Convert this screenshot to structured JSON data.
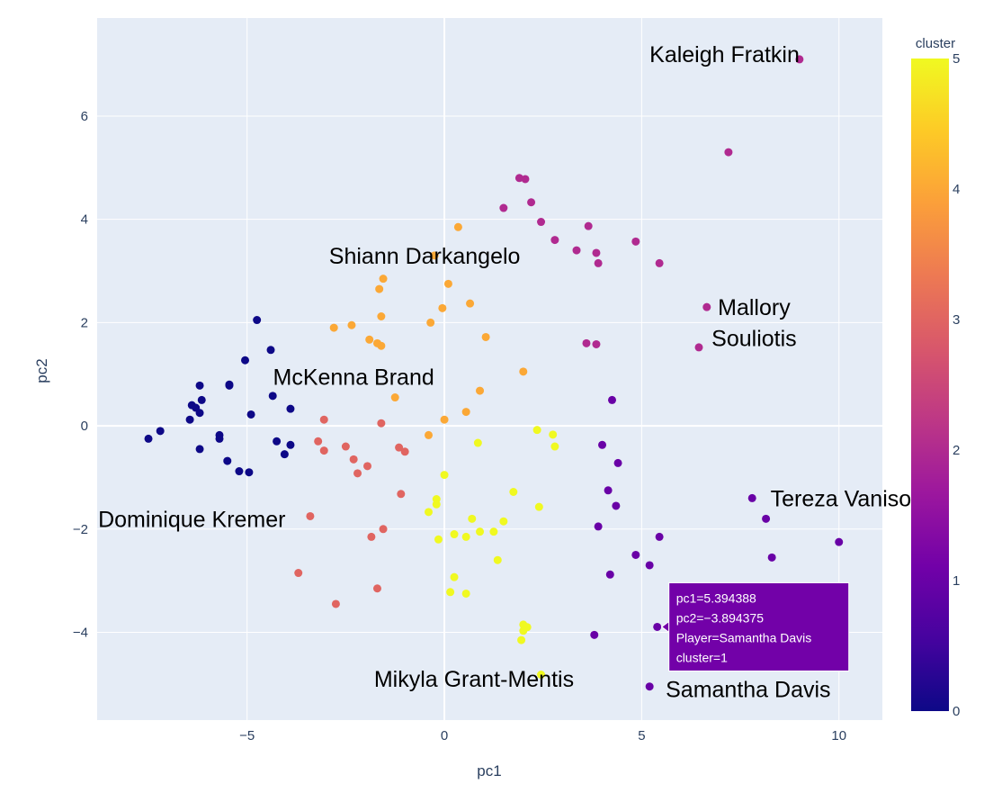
{
  "chart_data": {
    "type": "scatter",
    "xlabel": "pc1",
    "ylabel": "pc2",
    "xlim": [
      -8.8,
      11.1
    ],
    "ylim": [
      -5.7,
      7.9
    ],
    "x_ticks": [
      -5,
      0,
      5,
      10
    ],
    "y_ticks": [
      -4,
      -2,
      0,
      2,
      4,
      6
    ],
    "x_tick_labels": [
      "−5",
      "0",
      "5",
      "10"
    ],
    "y_tick_labels": [
      "−4",
      "−2",
      "0",
      "2",
      "4",
      "6"
    ],
    "grid": true,
    "plot_background": "#e5ecf6",
    "color_scale": [
      "#0d0887",
      "#46039f",
      "#7201a8",
      "#9c179e",
      "#bd3786",
      "#d8576b",
      "#ed7953",
      "#fb9f3a",
      "#fdca26",
      "#f0f921"
    ],
    "colorbar": {
      "title": "cluster",
      "min": 0,
      "max": 5,
      "ticks": [
        0,
        1,
        2,
        3,
        4,
        5
      ],
      "tick_labels": [
        "0",
        "1",
        "2",
        "3",
        "4",
        "5"
      ]
    },
    "points": [
      {
        "x": -7.5,
        "y": -0.25,
        "c": 0
      },
      {
        "x": -7.2,
        "y": -0.1,
        "c": 0
      },
      {
        "x": -6.4,
        "y": 0.4,
        "c": 0
      },
      {
        "x": -6.3,
        "y": 0.35,
        "c": 0
      },
      {
        "x": -6.2,
        "y": 0.25,
        "c": 0
      },
      {
        "x": -6.15,
        "y": 0.5,
        "c": 0
      },
      {
        "x": -6.2,
        "y": 0.78,
        "c": 0
      },
      {
        "x": -6.45,
        "y": 0.12,
        "c": 0
      },
      {
        "x": -6.2,
        "y": -0.45,
        "c": 0
      },
      {
        "x": -5.7,
        "y": -0.18,
        "c": 0
      },
      {
        "x": -5.7,
        "y": -0.25,
        "c": 0
      },
      {
        "x": -5.45,
        "y": 0.78,
        "c": 0
      },
      {
        "x": -5.45,
        "y": 0.8,
        "c": 0
      },
      {
        "x": -5.5,
        "y": -0.68,
        "c": 0
      },
      {
        "x": -5.2,
        "y": -0.88,
        "c": 0
      },
      {
        "x": -4.95,
        "y": -0.9,
        "c": 0
      },
      {
        "x": -5.05,
        "y": 1.27,
        "c": 0
      },
      {
        "x": -4.75,
        "y": 2.05,
        "c": 0
      },
      {
        "x": -4.9,
        "y": 0.22,
        "c": 0
      },
      {
        "x": -4.4,
        "y": 1.47,
        "c": 0
      },
      {
        "x": -4.35,
        "y": 0.58,
        "c": 0
      },
      {
        "x": -4.25,
        "y": -0.3,
        "c": 0
      },
      {
        "x": -4.05,
        "y": -0.55,
        "c": 0
      },
      {
        "x": -3.9,
        "y": -0.37,
        "c": 0
      },
      {
        "x": -3.9,
        "y": 0.33,
        "c": 0
      },
      {
        "x": 8.15,
        "y": -1.8,
        "c": 1
      },
      {
        "x": 7.8,
        "y": -1.4,
        "c": 1
      },
      {
        "x": 10.0,
        "y": -2.25,
        "c": 1
      },
      {
        "x": 8.3,
        "y": -2.55,
        "c": 1
      },
      {
        "x": 5.45,
        "y": -2.15,
        "c": 1
      },
      {
        "x": 5.2,
        "y": -2.7,
        "c": 1
      },
      {
        "x": 4.85,
        "y": -2.5,
        "c": 1
      },
      {
        "x": 4.2,
        "y": -2.88,
        "c": 1
      },
      {
        "x": 3.9,
        "y": -1.95,
        "c": 1
      },
      {
        "x": 4.15,
        "y": -1.25,
        "c": 1
      },
      {
        "x": 4.35,
        "y": -1.55,
        "c": 1
      },
      {
        "x": 4.0,
        "y": -0.37,
        "c": 1
      },
      {
        "x": 4.4,
        "y": -0.72,
        "c": 1
      },
      {
        "x": 4.25,
        "y": 0.5,
        "c": 1
      },
      {
        "x": 3.8,
        "y": -4.05,
        "c": 1
      },
      {
        "x": 5.394388,
        "y": -3.894375,
        "c": 1
      },
      {
        "x": 5.2,
        "y": -5.05,
        "c": 1
      },
      {
        "x": 9.0,
        "y": 7.1,
        "c": 2
      },
      {
        "x": 7.2,
        "y": 5.3,
        "c": 2
      },
      {
        "x": 6.65,
        "y": 2.3,
        "c": 2
      },
      {
        "x": 6.45,
        "y": 1.52,
        "c": 2
      },
      {
        "x": 5.45,
        "y": 3.15,
        "c": 2
      },
      {
        "x": 4.85,
        "y": 3.57,
        "c": 2
      },
      {
        "x": 3.85,
        "y": 3.35,
        "c": 2
      },
      {
        "x": 3.9,
        "y": 3.15,
        "c": 2
      },
      {
        "x": 3.65,
        "y": 3.87,
        "c": 2
      },
      {
        "x": 3.35,
        "y": 3.4,
        "c": 2
      },
      {
        "x": 2.8,
        "y": 3.6,
        "c": 2
      },
      {
        "x": 2.45,
        "y": 3.95,
        "c": 2
      },
      {
        "x": 2.2,
        "y": 4.33,
        "c": 2
      },
      {
        "x": 1.9,
        "y": 4.8,
        "c": 2
      },
      {
        "x": 2.05,
        "y": 4.78,
        "c": 2
      },
      {
        "x": 1.5,
        "y": 4.22,
        "c": 2
      },
      {
        "x": 3.6,
        "y": 1.6,
        "c": 2
      },
      {
        "x": 3.85,
        "y": 1.58,
        "c": 2
      },
      {
        "x": -3.05,
        "y": 0.12,
        "c": 3
      },
      {
        "x": -3.2,
        "y": -0.3,
        "c": 3
      },
      {
        "x": -3.05,
        "y": -0.48,
        "c": 3
      },
      {
        "x": -2.5,
        "y": -0.4,
        "c": 3
      },
      {
        "x": -2.3,
        "y": -0.65,
        "c": 3
      },
      {
        "x": -2.2,
        "y": -0.92,
        "c": 3
      },
      {
        "x": -1.95,
        "y": -0.78,
        "c": 3
      },
      {
        "x": -1.6,
        "y": 0.05,
        "c": 3
      },
      {
        "x": -1.15,
        "y": -0.42,
        "c": 3
      },
      {
        "x": -1.0,
        "y": -0.5,
        "c": 3
      },
      {
        "x": -1.1,
        "y": -1.32,
        "c": 3
      },
      {
        "x": -1.55,
        "y": -2.0,
        "c": 3
      },
      {
        "x": -1.85,
        "y": -2.15,
        "c": 3
      },
      {
        "x": -3.4,
        "y": -1.75,
        "c": 3
      },
      {
        "x": -3.7,
        "y": -2.85,
        "c": 3
      },
      {
        "x": -2.75,
        "y": -3.45,
        "c": 3
      },
      {
        "x": -1.7,
        "y": -3.15,
        "c": 3
      },
      {
        "x": 0.35,
        "y": 3.85,
        "c": 4
      },
      {
        "x": -0.25,
        "y": 3.3,
        "c": 4
      },
      {
        "x": 0.1,
        "y": 2.75,
        "c": 4
      },
      {
        "x": -1.55,
        "y": 2.85,
        "c": 4
      },
      {
        "x": -1.65,
        "y": 2.65,
        "c": 4
      },
      {
        "x": -0.05,
        "y": 2.28,
        "c": 4
      },
      {
        "x": -0.35,
        "y": 2.0,
        "c": 4
      },
      {
        "x": 0.65,
        "y": 2.37,
        "c": 4
      },
      {
        "x": -1.6,
        "y": 2.12,
        "c": 4
      },
      {
        "x": -2.35,
        "y": 1.95,
        "c": 4
      },
      {
        "x": -2.8,
        "y": 1.9,
        "c": 4
      },
      {
        "x": -1.9,
        "y": 1.67,
        "c": 4
      },
      {
        "x": -1.7,
        "y": 1.6,
        "c": 4
      },
      {
        "x": -1.6,
        "y": 1.55,
        "c": 4
      },
      {
        "x": 1.05,
        "y": 1.72,
        "c": 4
      },
      {
        "x": 2.0,
        "y": 1.05,
        "c": 4
      },
      {
        "x": -1.25,
        "y": 0.55,
        "c": 4
      },
      {
        "x": 0.9,
        "y": 0.68,
        "c": 4
      },
      {
        "x": 0.55,
        "y": 0.27,
        "c": 4
      },
      {
        "x": 0.0,
        "y": 0.12,
        "c": 4
      },
      {
        "x": -0.4,
        "y": -0.18,
        "c": 4
      },
      {
        "x": 2.35,
        "y": -0.08,
        "c": 5
      },
      {
        "x": 2.75,
        "y": -0.17,
        "c": 5
      },
      {
        "x": 2.8,
        "y": -0.4,
        "c": 5
      },
      {
        "x": 0.85,
        "y": -0.33,
        "c": 5
      },
      {
        "x": 0.0,
        "y": -0.95,
        "c": 5
      },
      {
        "x": -0.2,
        "y": -1.42,
        "c": 5
      },
      {
        "x": -0.2,
        "y": -1.52,
        "c": 5
      },
      {
        "x": -0.4,
        "y": -1.67,
        "c": 5
      },
      {
        "x": 1.75,
        "y": -1.28,
        "c": 5
      },
      {
        "x": 2.4,
        "y": -1.57,
        "c": 5
      },
      {
        "x": 0.7,
        "y": -1.8,
        "c": 5
      },
      {
        "x": 0.9,
        "y": -2.05,
        "c": 5
      },
      {
        "x": 1.5,
        "y": -1.85,
        "c": 5
      },
      {
        "x": 1.25,
        "y": -2.05,
        "c": 5
      },
      {
        "x": 0.25,
        "y": -2.1,
        "c": 5
      },
      {
        "x": 0.55,
        "y": -2.15,
        "c": 5
      },
      {
        "x": -0.15,
        "y": -2.2,
        "c": 5
      },
      {
        "x": 1.35,
        "y": -2.6,
        "c": 5
      },
      {
        "x": 0.25,
        "y": -2.93,
        "c": 5
      },
      {
        "x": 0.15,
        "y": -3.22,
        "c": 5
      },
      {
        "x": 0.55,
        "y": -3.25,
        "c": 5
      },
      {
        "x": 2.0,
        "y": -3.85,
        "c": 5
      },
      {
        "x": 2.1,
        "y": -3.9,
        "c": 5
      },
      {
        "x": 2.0,
        "y": -3.97,
        "c": 5
      },
      {
        "x": 1.95,
        "y": -4.15,
        "c": 5
      },
      {
        "x": 2.45,
        "y": -4.82,
        "c": 5
      }
    ],
    "annotations": [
      {
        "text": "Kaleigh Fratkin",
        "x": 7.1,
        "y": 7.2
      },
      {
        "text": "Shiann Darkangelo",
        "x": -0.5,
        "y": 3.3
      },
      {
        "text": "Mallory",
        "x": 7.85,
        "y": 2.3
      },
      {
        "text": "Souliotis",
        "x": 7.85,
        "y": 1.7
      },
      {
        "text": "McKenna Brand",
        "x": -2.3,
        "y": 0.95
      },
      {
        "text": "Tereza Vanisova",
        "x": 10.35,
        "y": -1.4
      },
      {
        "text": "Dominique Kremer",
        "x": -6.4,
        "y": -1.8
      },
      {
        "text": "Mikyla Grant-Mentis",
        "x": 0.75,
        "y": -4.9
      },
      {
        "text": "Samantha Davis",
        "x": 7.7,
        "y": -5.1
      }
    ],
    "hover": {
      "x": 5.394388,
      "y": -3.894375,
      "color": "#7201a8",
      "lines": [
        "pc1=5.394388",
        "pc2=−3.894375",
        "Player=Samantha Davis",
        "cluster=1"
      ]
    }
  }
}
